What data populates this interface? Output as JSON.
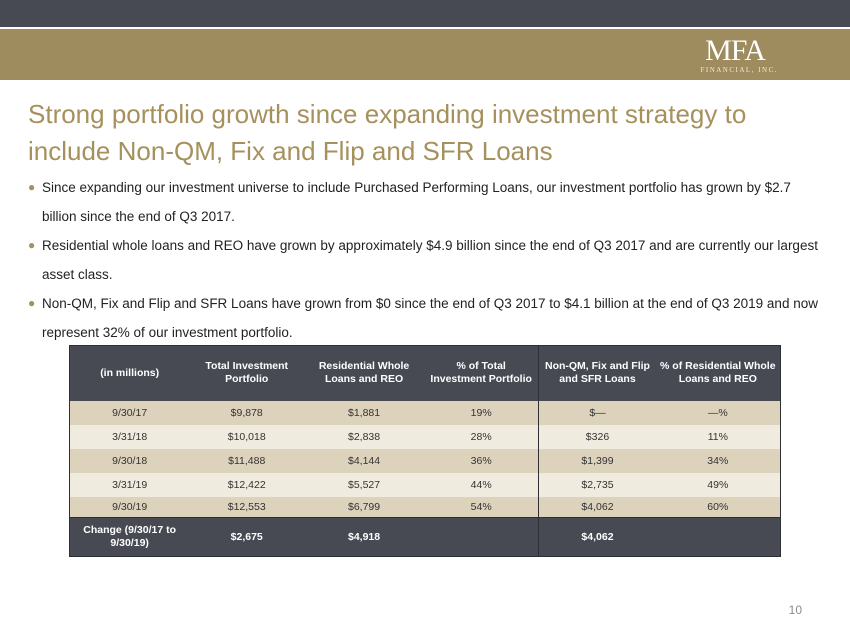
{
  "logo": {
    "main": "MFA",
    "sub": "FINANCIAL, INC."
  },
  "title": "Strong portfolio growth since expanding investment strategy to include Non-QM, Fix and Flip and SFR Loans",
  "bullets": [
    "Since expanding our investment universe to include Purchased Performing Loans, our investment portfolio has grown by $2.7 billion since the end of Q3 2017.",
    "Residential whole loans and REO have grown by approximately $4.9 billion since the end of Q3 2017 and are currently our largest asset class.",
    "Non-QM, Fix and Flip and SFR Loans have grown from $0 since the end of Q3 2017 to $4.1 billion at the end of Q3 2019 and now represent 32% of our investment portfolio."
  ],
  "table": {
    "headers": [
      "(in millions)",
      "Total Investment Portfolio",
      "Residential Whole Loans and REO",
      "% of Total Investment Portfolio",
      "Non-QM, Fix and Flip and SFR Loans",
      "% of Residential Whole Loans and REO"
    ],
    "rows": [
      [
        "9/30/17",
        "$9,878",
        "$1,881",
        "19%",
        "$—",
        "—%"
      ],
      [
        "3/31/18",
        "$10,018",
        "$2,838",
        "28%",
        "$326",
        "11%"
      ],
      [
        "9/30/18",
        "$11,488",
        "$4,144",
        "36%",
        "$1,399",
        "34%"
      ],
      [
        "3/31/19",
        "$12,422",
        "$5,527",
        "44%",
        "$2,735",
        "49%"
      ],
      [
        "9/30/19",
        "$12,553",
        "$6,799",
        "54%",
        "$4,062",
        "60%"
      ]
    ],
    "change_row": [
      "Change (9/30/17 to 9/30/19)",
      "$2,675",
      "$4,918",
      "",
      "$4,062",
      ""
    ]
  },
  "page_number": "10",
  "colors": {
    "dark_bar": "#474a53",
    "gold_bar": "#9f8c5e",
    "title_gold": "#a6915d",
    "row_dark": "#ddd3bd",
    "row_light": "#f0ebdf"
  }
}
